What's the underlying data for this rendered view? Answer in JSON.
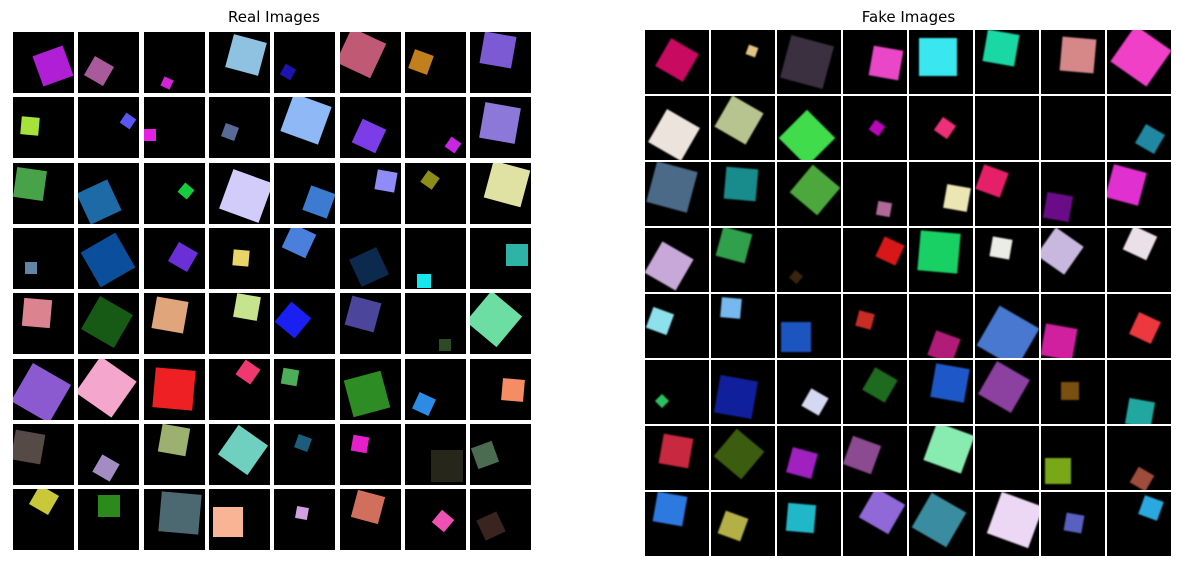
{
  "figure": {
    "left_title": "Real Images",
    "right_title": "Fake Images"
  },
  "real_grid": {
    "rows": 8,
    "cols": 8,
    "cells": [
      [
        {
          "c": "#b01ed6"
        },
        {
          "c": "#a85a9a"
        },
        {
          "c": "#d524d6"
        },
        {
          "c": "#8fc2e0"
        },
        {
          "c": "#1c13b0"
        },
        {
          "c": "#c05a74"
        },
        {
          "c": "#c27f1d"
        },
        {
          "c": "#7b5ad4"
        }
      ],
      [
        {
          "c": "#a6e23a"
        },
        {
          "c": "#5a56f2"
        },
        {
          "c": "#e520e2"
        },
        {
          "c": "#5a6a98"
        },
        {
          "c": "#8fb8f6"
        },
        {
          "c": "#7c3ce8"
        },
        {
          "c": "#c726e3"
        },
        {
          "c": "#8c78d8"
        }
      ],
      [
        {
          "c": "#48a24a"
        },
        {
          "c": "#1e6aa6"
        },
        {
          "c": "#15cc3e"
        },
        {
          "c": "#d1ccf9"
        },
        {
          "c": "#3d7bd0"
        },
        {
          "c": "#8f8cf7"
        },
        {
          "c": "#8e8d1a"
        },
        {
          "c": "#e0e2a4"
        }
      ],
      [
        {
          "c": "#6284a6"
        },
        {
          "c": "#0b4e9c"
        },
        {
          "c": "#6b2fd8"
        },
        {
          "c": "#ead468"
        },
        {
          "c": "#4a7fdc"
        },
        {
          "c": "#0c2a4e"
        },
        {
          "c": "#16e7ed"
        },
        {
          "c": "#2fb3a7"
        }
      ],
      [
        {
          "c": "#db8490"
        },
        {
          "c": "#165a16"
        },
        {
          "c": "#e0a57a"
        },
        {
          "c": "#c6e38e"
        },
        {
          "c": "#1a20f2"
        },
        {
          "c": "#4b459c"
        },
        {
          "c": "#2c4a24"
        },
        {
          "c": "#6cdea4"
        }
      ],
      [
        {
          "c": "#8c5ad0"
        },
        {
          "c": "#f4a6cc"
        },
        {
          "c": "#ee2024"
        },
        {
          "c": "#f03870"
        },
        {
          "c": "#4cae58"
        },
        {
          "c": "#2e8c24"
        },
        {
          "c": "#2d8be5"
        },
        {
          "c": "#f48c64"
        }
      ],
      [
        {
          "c": "#564a46"
        },
        {
          "c": "#a28cc2"
        },
        {
          "c": "#9cb070"
        },
        {
          "c": "#70d0c0"
        },
        {
          "c": "#1c5c7c"
        },
        {
          "c": "#e620c8"
        },
        {
          "c": "#26261a"
        },
        {
          "c": "#4c6c52"
        }
      ],
      [
        {
          "c": "#c8c838"
        },
        {
          "c": "#2c8a1c"
        },
        {
          "c": "#4c6870"
        },
        {
          "c": "#f8b494"
        },
        {
          "c": "#d0a0e0"
        },
        {
          "c": "#d0705c"
        },
        {
          "c": "#ee50b4"
        },
        {
          "c": "#3a2420"
        }
      ]
    ]
  },
  "fake_grid": {
    "rows": 8,
    "cols": 8,
    "cells": [
      [
        {
          "c": "#c80a60"
        },
        {
          "c": "#e0c484"
        },
        {
          "c": "#3a3040"
        },
        {
          "c": "#ea46c8"
        },
        {
          "c": "#3ae6f0"
        },
        {
          "c": "#1ad8a4"
        },
        {
          "c": "#d68888"
        },
        {
          "c": "#f040c8"
        }
      ],
      [
        {
          "c": "#ece4dc"
        },
        {
          "c": "#b8c490"
        },
        {
          "c": "#40dc4c"
        },
        {
          "c": "#b808b8"
        },
        {
          "c": "#ee3078"
        },
        {
          "c": "#000000"
        },
        {
          "c": "#000000"
        },
        {
          "c": "#2088a0"
        }
      ],
      [
        {
          "c": "#4a6a88"
        },
        {
          "c": "#188c8c"
        },
        {
          "c": "#4ca83c"
        },
        {
          "c": "#b06898"
        },
        {
          "c": "#ece6b4"
        },
        {
          "c": "#e62068"
        },
        {
          "c": "#6a0c88"
        },
        {
          "c": "#e030d0"
        }
      ],
      [
        {
          "c": "#c8a8d8"
        },
        {
          "c": "#30a04c"
        },
        {
          "c": "#3a2410"
        },
        {
          "c": "#d81818"
        },
        {
          "c": "#18d064"
        },
        {
          "c": "#ecece6"
        },
        {
          "c": "#c8b8e0"
        },
        {
          "c": "#ece0e8"
        }
      ],
      [
        {
          "c": "#8ee0ec"
        },
        {
          "c": "#78b8f0"
        },
        {
          "c": "#1c54c0"
        },
        {
          "c": "#c82c24"
        },
        {
          "c": "#b01c78"
        },
        {
          "c": "#4878d0"
        },
        {
          "c": "#d020a0"
        },
        {
          "c": "#ee3840"
        }
      ],
      [
        {
          "c": "#2cc060"
        },
        {
          "c": "#10209c"
        },
        {
          "c": "#d4d8f0"
        },
        {
          "c": "#1e6a1e"
        },
        {
          "c": "#1e58c8"
        },
        {
          "c": "#8c40a0"
        },
        {
          "c": "#7a5010"
        },
        {
          "c": "#20a8a0"
        }
      ],
      [
        {
          "c": "#c82840"
        },
        {
          "c": "#3c5c10"
        },
        {
          "c": "#a020c0"
        },
        {
          "c": "#8c4a90"
        },
        {
          "c": "#88ecb0"
        },
        {
          "c": "#000000"
        },
        {
          "c": "#78a818"
        },
        {
          "c": "#a04c3c"
        }
      ],
      [
        {
          "c": "#2c7ae0"
        },
        {
          "c": "#b4b048"
        },
        {
          "c": "#20b8c8"
        },
        {
          "c": "#9068d8"
        },
        {
          "c": "#3a8ca0"
        },
        {
          "c": "#ecd8f4"
        },
        {
          "c": "#5860c0"
        },
        {
          "c": "#2ca8e0"
        }
      ]
    ]
  }
}
